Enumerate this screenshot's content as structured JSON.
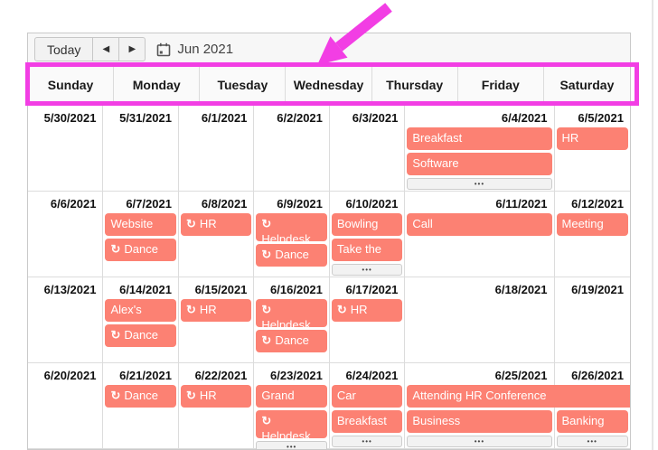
{
  "toolbar": {
    "today_label": "Today",
    "current_period": "Jun 2021"
  },
  "icons": {
    "prev": "◀",
    "next": "▶",
    "recurring": "↻",
    "more": "•••"
  },
  "colors": {
    "event": "#fc8173",
    "annotation": "#f23ee4"
  },
  "day_headers": [
    "Sunday",
    "Monday",
    "Tuesday",
    "Wednesday",
    "Thursday",
    "Friday",
    "Saturday"
  ],
  "weeks": [
    {
      "cells": [
        {
          "date": "5/30/2021",
          "events": []
        },
        {
          "date": "5/31/2021",
          "events": []
        },
        {
          "date": "6/1/2021",
          "events": []
        },
        {
          "date": "6/2/2021",
          "events": []
        },
        {
          "date": "6/3/2021",
          "events": []
        },
        {
          "date": "6/4/2021",
          "events": [
            {
              "label": "Breakfast"
            },
            {
              "label": "Software"
            }
          ],
          "more": true
        },
        {
          "date": "6/5/2021",
          "events": [
            {
              "label": "HR"
            }
          ]
        }
      ]
    },
    {
      "cells": [
        {
          "date": "6/6/2021",
          "events": []
        },
        {
          "date": "6/7/2021",
          "events": [
            {
              "label": "Website"
            },
            {
              "label": "Dance",
              "recurring": true
            }
          ]
        },
        {
          "date": "6/8/2021",
          "events": [
            {
              "label": "HR",
              "recurring": true
            }
          ]
        },
        {
          "date": "6/9/2021",
          "events": [
            {
              "label": "Helpdesk",
              "recurring": true,
              "wrap": true
            },
            {
              "label": "Dance",
              "recurring": true
            }
          ]
        },
        {
          "date": "6/10/2021",
          "events": [
            {
              "label": "Bowling"
            },
            {
              "label": "Take the"
            }
          ],
          "more": true
        },
        {
          "date": "6/11/2021",
          "events": [
            {
              "label": "Call"
            }
          ]
        },
        {
          "date": "6/12/2021",
          "events": [
            {
              "label": "Meeting"
            }
          ]
        }
      ]
    },
    {
      "cells": [
        {
          "date": "6/13/2021",
          "events": []
        },
        {
          "date": "6/14/2021",
          "events": [
            {
              "label": "Alex's"
            },
            {
              "label": "Dance",
              "recurring": true
            }
          ]
        },
        {
          "date": "6/15/2021",
          "events": [
            {
              "label": "HR",
              "recurring": true
            }
          ]
        },
        {
          "date": "6/16/2021",
          "events": [
            {
              "label": "Helpdesk",
              "recurring": true,
              "wrap": true
            },
            {
              "label": "Dance",
              "recurring": true
            }
          ]
        },
        {
          "date": "6/17/2021",
          "events": [
            {
              "label": "HR",
              "recurring": true
            }
          ]
        },
        {
          "date": "6/18/2021",
          "events": []
        },
        {
          "date": "6/19/2021",
          "events": []
        }
      ]
    },
    {
      "cells": [
        {
          "date": "6/20/2021",
          "events": []
        },
        {
          "date": "6/21/2021",
          "events": [
            {
              "label": "Dance",
              "recurring": true
            }
          ]
        },
        {
          "date": "6/22/2021",
          "events": [
            {
              "label": "HR",
              "recurring": true
            }
          ]
        },
        {
          "date": "6/23/2021",
          "events": [
            {
              "label": "Grand"
            },
            {
              "label": "Helpdesk",
              "recurring": true,
              "wrap": true
            }
          ],
          "more": true
        },
        {
          "date": "6/24/2021",
          "events": [
            {
              "label": "Car"
            },
            {
              "label": "Breakfast"
            }
          ],
          "more": true
        },
        {
          "date": "6/25/2021",
          "events": [
            {
              "label": "Attending HR Conference",
              "span": 2
            },
            {
              "label": "Business"
            }
          ],
          "more": true
        },
        {
          "date": "6/26/2021",
          "events": [
            {
              "spacer": true
            },
            {
              "label": "Banking"
            }
          ],
          "more": true
        }
      ]
    }
  ]
}
